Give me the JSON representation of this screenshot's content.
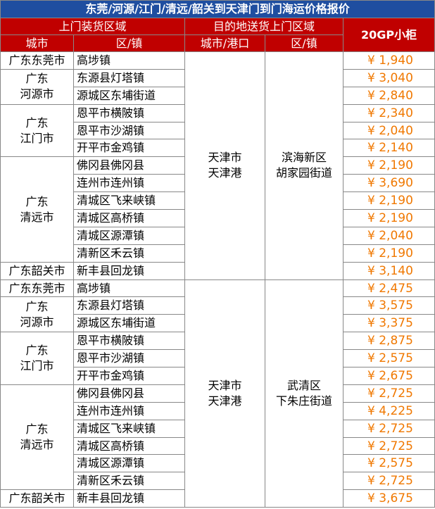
{
  "title": "东莞/河源/江门/清远/韶关到天津门到门海运价格报价",
  "header": {
    "pickup": "上门装货区域",
    "delivery": "目的地送货上门区域",
    "price": "20GP小柜",
    "city": "城市",
    "district": "区/镇",
    "dest_city": "城市/港口",
    "dest_district": "区/镇"
  },
  "sections": [
    {
      "dest_city": [
        "天津市",
        "天津港"
      ],
      "dest_district": [
        "滨海新区",
        "胡家园街道"
      ],
      "groups": [
        {
          "city": [
            "广东东莞市"
          ],
          "rows": [
            {
              "district": "高埗镇",
              "price": "¥ 1,940"
            }
          ]
        },
        {
          "city": [
            "广东",
            "河源市"
          ],
          "rows": [
            {
              "district": "东源县灯塔镇",
              "price": "¥ 3,040"
            },
            {
              "district": "源城区东埔街道",
              "price": "¥ 2,840"
            }
          ]
        },
        {
          "city": [
            "广东",
            "江门市"
          ],
          "rows": [
            {
              "district": "恩平市横陂镇",
              "price": "¥ 2,340"
            },
            {
              "district": "恩平市沙湖镇",
              "price": "¥ 2,040"
            },
            {
              "district": "开平市金鸡镇",
              "price": "¥ 2,140"
            }
          ]
        },
        {
          "city": [
            "广东",
            "清远市"
          ],
          "rows": [
            {
              "district": "佛冈县佛冈县",
              "price": "¥ 2,190"
            },
            {
              "district": "连州市连州镇",
              "price": "¥ 3,690"
            },
            {
              "district": "清城区飞来峡镇",
              "price": "¥ 2,190"
            },
            {
              "district": "清城区高桥镇",
              "price": "¥ 2,190"
            },
            {
              "district": "清城区源潭镇",
              "price": "¥ 2,040"
            },
            {
              "district": "清新区禾云镇",
              "price": "¥ 2,190"
            }
          ]
        },
        {
          "city": [
            "广东韶关市"
          ],
          "rows": [
            {
              "district": "新丰县回龙镇",
              "price": "¥ 3,140"
            }
          ]
        }
      ]
    },
    {
      "dest_city": [
        "天津市",
        "天津港"
      ],
      "dest_district": [
        "武清区",
        "下朱庄街道"
      ],
      "groups": [
        {
          "city": [
            "广东东莞市"
          ],
          "rows": [
            {
              "district": "高埗镇",
              "price": "¥ 2,475"
            }
          ]
        },
        {
          "city": [
            "广东",
            "河源市"
          ],
          "rows": [
            {
              "district": "东源县灯塔镇",
              "price": "¥ 3,575"
            },
            {
              "district": "源城区东埔街道",
              "price": "¥ 3,375"
            }
          ]
        },
        {
          "city": [
            "广东",
            "江门市"
          ],
          "rows": [
            {
              "district": "恩平市横陂镇",
              "price": "¥ 2,875"
            },
            {
              "district": "恩平市沙湖镇",
              "price": "¥ 2,575"
            },
            {
              "district": "开平市金鸡镇",
              "price": "¥ 2,675"
            }
          ]
        },
        {
          "city": [
            "广东",
            "清远市"
          ],
          "rows": [
            {
              "district": "佛冈县佛冈县",
              "price": "¥ 2,725"
            },
            {
              "district": "连州市连州镇",
              "price": "¥ 4,225"
            },
            {
              "district": "清城区飞来峡镇",
              "price": "¥ 2,725"
            },
            {
              "district": "清城区高桥镇",
              "price": "¥ 2,725"
            },
            {
              "district": "清城区源潭镇",
              "price": "¥ 2,575"
            },
            {
              "district": "清新区禾云镇",
              "price": "¥ 2,725"
            }
          ]
        },
        {
          "city": [
            "广东韶关市"
          ],
          "rows": [
            {
              "district": "新丰县回龙镇",
              "price": "¥ 3,675"
            }
          ]
        }
      ]
    }
  ]
}
